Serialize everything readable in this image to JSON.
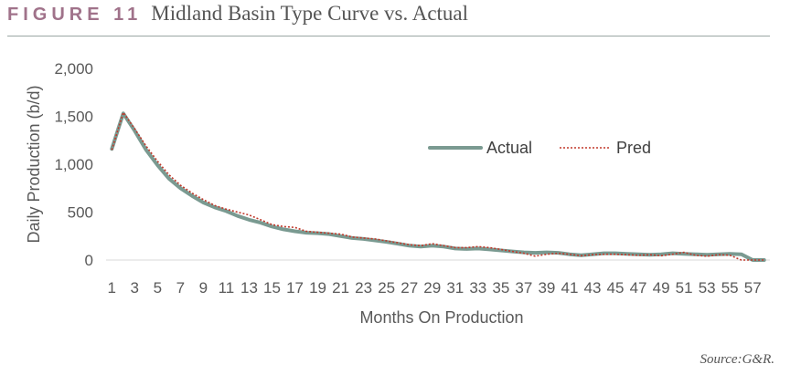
{
  "header": {
    "figure_label": "FIGURE 11",
    "title": "Midland Basin Type Curve vs. Actual"
  },
  "source_note": "Source:G&R.",
  "colors": {
    "figure_label": "#a0728a",
    "actual": "#7a9a91",
    "pred": "#c0392b",
    "rule": "#9aa7a3"
  },
  "chart_data": {
    "type": "line",
    "title": "",
    "xlabel": "Months On Production",
    "ylabel": "Daily Production (b/d)",
    "ylim": [
      0,
      2000
    ],
    "yticks": [
      0,
      500,
      1000,
      1500,
      2000
    ],
    "ytick_labels": [
      "0",
      "500",
      "1,000",
      "1,500",
      "2,000"
    ],
    "xtick_labels": [
      "1",
      "3",
      "5",
      "7",
      "9",
      "11",
      "13",
      "15",
      "17",
      "19",
      "21",
      "23",
      "25",
      "27",
      "29",
      "31",
      "33",
      "35",
      "37",
      "39",
      "41",
      "43",
      "45",
      "47",
      "49",
      "51",
      "53",
      "55",
      "57"
    ],
    "grid": false,
    "legend": "top-right",
    "x": [
      1,
      2,
      3,
      4,
      5,
      6,
      7,
      8,
      9,
      10,
      11,
      12,
      13,
      14,
      15,
      16,
      17,
      18,
      19,
      20,
      21,
      22,
      23,
      24,
      25,
      26,
      27,
      28,
      29,
      30,
      31,
      32,
      33,
      34,
      35,
      36,
      37,
      38,
      39,
      40,
      41,
      42,
      43,
      44,
      45,
      46,
      47,
      48,
      49,
      50,
      51,
      52,
      53,
      54,
      55,
      56,
      57,
      58
    ],
    "series": [
      {
        "name": "Actual",
        "style": "solid",
        "values": [
          1160,
          1530,
          1350,
          1150,
          990,
          850,
          750,
          670,
          600,
          550,
          510,
          460,
          420,
          390,
          350,
          320,
          300,
          285,
          280,
          270,
          250,
          230,
          220,
          205,
          190,
          170,
          150,
          140,
          150,
          140,
          120,
          115,
          120,
          110,
          100,
          90,
          80,
          75,
          80,
          75,
          60,
          50,
          60,
          70,
          70,
          65,
          60,
          55,
          60,
          70,
          65,
          60,
          55,
          60,
          65,
          60,
          0,
          0
        ]
      },
      {
        "name": "Pred",
        "style": "dotted",
        "values": [
          1150,
          1540,
          1370,
          1190,
          1030,
          890,
          780,
          700,
          630,
          570,
          530,
          500,
          470,
          420,
          370,
          350,
          340,
          300,
          290,
          280,
          270,
          240,
          230,
          220,
          200,
          180,
          160,
          150,
          170,
          150,
          130,
          130,
          140,
          130,
          110,
          90,
          70,
          40,
          60,
          70,
          60,
          45,
          55,
          60,
          60,
          55,
          50,
          55,
          45,
          60,
          80,
          50,
          40,
          55,
          50,
          0,
          0,
          0
        ]
      }
    ]
  }
}
